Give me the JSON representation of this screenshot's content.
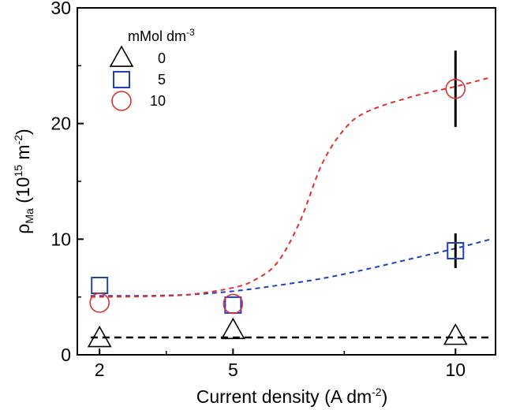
{
  "chart_data": {
    "type": "scatter",
    "xlabel": "Current density (A dm",
    "xlabel_sup": "-2",
    "xlabel_tail": ")",
    "ylabel_main": "ρ",
    "ylabel_sub": "Ma",
    "ylabel_mid": " (10",
    "ylabel_sup1": "15",
    "ylabel_unit": " m",
    "ylabel_sup2": "-2",
    "ylabel_tail": ")",
    "xlim": [
      1.5,
      10.9
    ],
    "ylim": [
      0,
      30
    ],
    "x_ticks": [
      2,
      5,
      10
    ],
    "x_tick_labels": [
      "2",
      "5",
      "10"
    ],
    "y_ticks": [
      0,
      10,
      20,
      30
    ],
    "y_tick_labels": [
      "0",
      "10",
      "20",
      "30"
    ],
    "y_minor_ticks": [
      5,
      15,
      25
    ],
    "x_minor_ticks": [
      3.5,
      7.5
    ],
    "legend": {
      "title": "mMol dm",
      "title_sup": "-3",
      "placement": "top-left",
      "entries": [
        {
          "label": "0",
          "marker": "triangle",
          "color": "#000000"
        },
        {
          "label": "5",
          "marker": "square",
          "color": "#1f3fbf"
        },
        {
          "label": "10",
          "marker": "circle",
          "color": "#e03030"
        }
      ]
    },
    "series": [
      {
        "label": "0",
        "marker": "triangle",
        "color": "#000000",
        "points": [
          {
            "x": 2,
            "y": 1.4
          },
          {
            "x": 5,
            "y": 2.1
          },
          {
            "x": 10,
            "y": 1.6
          }
        ],
        "fit": [
          [
            1.8,
            1.5
          ],
          [
            10.8,
            1.5
          ]
        ]
      },
      {
        "label": "5",
        "marker": "square",
        "color": "#1f3fbf",
        "points": [
          {
            "x": 2,
            "y": 6.0
          },
          {
            "x": 5,
            "y": 4.3
          },
          {
            "x": 10,
            "y": 9.0,
            "err": 1.5
          }
        ],
        "fit": [
          [
            1.8,
            5.1
          ],
          [
            3,
            5.1
          ],
          [
            4,
            5.2
          ],
          [
            5,
            5.5
          ],
          [
            6,
            6.0
          ],
          [
            7,
            6.6
          ],
          [
            8,
            7.4
          ],
          [
            9,
            8.3
          ],
          [
            10,
            9.2
          ],
          [
            10.8,
            10.0
          ]
        ]
      },
      {
        "label": "10",
        "marker": "circle",
        "color": "#e03030",
        "points": [
          {
            "x": 2,
            "y": 4.5
          },
          {
            "x": 5,
            "y": 4.4
          },
          {
            "x": 10,
            "y": 23.0,
            "err": 3.3
          }
        ],
        "fit": [
          [
            1.8,
            5.0
          ],
          [
            3,
            5.05
          ],
          [
            4,
            5.2
          ],
          [
            5,
            5.8
          ],
          [
            5.5,
            6.5
          ],
          [
            6,
            8.0
          ],
          [
            6.5,
            11.5
          ],
          [
            7,
            16.5
          ],
          [
            7.5,
            19.5
          ],
          [
            8,
            21.0
          ],
          [
            9,
            22.3
          ],
          [
            10,
            23.2
          ],
          [
            10.8,
            24.0
          ]
        ]
      }
    ]
  }
}
